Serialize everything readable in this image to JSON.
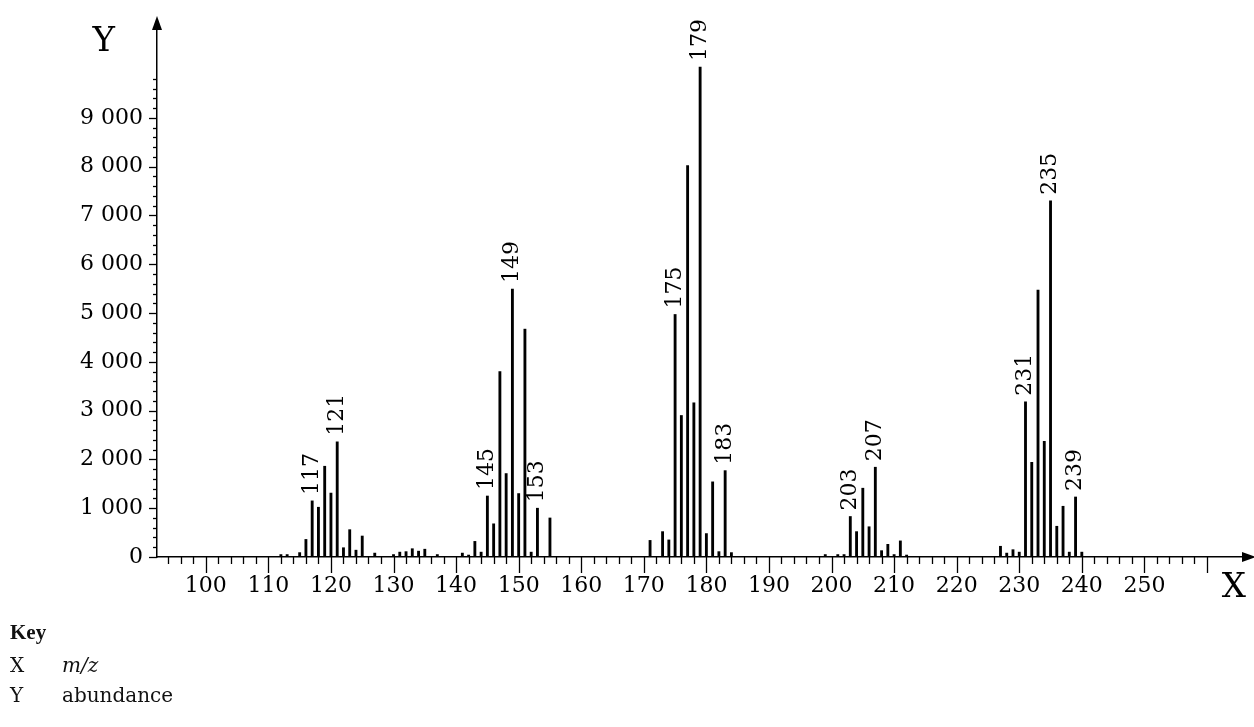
{
  "chart_data": {
    "type": "bar",
    "xlabel": "X",
    "ylabel": "Y",
    "color": "#000000",
    "x": [
      112,
      113,
      115,
      116,
      117,
      118,
      119,
      120,
      121,
      122,
      123,
      124,
      125,
      127,
      130,
      131,
      132,
      133,
      134,
      135,
      137,
      141,
      142,
      143,
      144,
      145,
      146,
      147,
      148,
      149,
      150,
      151,
      152,
      153,
      155,
      171,
      173,
      174,
      175,
      176,
      177,
      178,
      179,
      180,
      181,
      182,
      183,
      184,
      199,
      201,
      202,
      203,
      204,
      205,
      206,
      207,
      208,
      209,
      210,
      211,
      212,
      227,
      228,
      229,
      230,
      231,
      232,
      233,
      234,
      235,
      236,
      237,
      238,
      239,
      240
    ],
    "values": [
      50,
      50,
      90,
      360,
      1150,
      1020,
      1860,
      1310,
      2360,
      190,
      560,
      140,
      430,
      80,
      50,
      100,
      110,
      170,
      120,
      160,
      50,
      80,
      40,
      320,
      100,
      1250,
      680,
      3800,
      1710,
      5490,
      1300,
      4670,
      100,
      1000,
      800,
      340,
      520,
      350,
      4970,
      2900,
      8020,
      3160,
      10040,
      480,
      1540,
      110,
      1770,
      90,
      50,
      50,
      50,
      830,
      520,
      1410,
      620,
      1840,
      130,
      260,
      50,
      330,
      40,
      220,
      80,
      150,
      100,
      3180,
      1940,
      5470,
      2370,
      7300,
      630,
      1040,
      100,
      1230,
      100
    ],
    "xlim": [
      92.2,
      265.6
    ],
    "xticks": [
      {
        "value": 94,
        "label": null
      },
      {
        "value": 96,
        "label": null
      },
      {
        "value": 98,
        "label": null
      },
      100,
      {
        "value": 102,
        "label": null
      },
      {
        "value": 104,
        "label": null
      },
      {
        "value": 106,
        "label": null
      },
      {
        "value": 108,
        "label": null
      },
      110,
      {
        "value": 112,
        "label": null
      },
      {
        "value": 114,
        "label": null
      },
      {
        "value": 116,
        "label": null
      },
      {
        "value": 118,
        "label": null
      },
      120,
      {
        "value": 122,
        "label": null
      },
      {
        "value": 124,
        "label": null
      },
      {
        "value": 126,
        "label": null
      },
      {
        "value": 128,
        "label": null
      },
      130,
      {
        "value": 132,
        "label": null
      },
      {
        "value": 134,
        "label": null
      },
      {
        "value": 136,
        "label": null
      },
      {
        "value": 138,
        "label": null
      },
      140,
      {
        "value": 142,
        "label": null
      },
      {
        "value": 144,
        "label": null
      },
      {
        "value": 146,
        "label": null
      },
      {
        "value": 148,
        "label": null
      },
      150,
      {
        "value": 152,
        "label": null
      },
      {
        "value": 154,
        "label": null
      },
      {
        "value": 156,
        "label": null
      },
      {
        "value": 158,
        "label": null
      },
      160,
      {
        "value": 162,
        "label": null
      },
      {
        "value": 164,
        "label": null
      },
      {
        "value": 166,
        "label": null
      },
      {
        "value": 168,
        "label": null
      },
      170,
      {
        "value": 172,
        "label": null
      },
      {
        "value": 174,
        "label": null
      },
      {
        "value": 176,
        "label": null
      },
      {
        "value": 178,
        "label": null
      },
      180,
      {
        "value": 182,
        "label": null
      },
      {
        "value": 184,
        "label": null
      },
      {
        "value": 186,
        "label": null
      },
      {
        "value": 188,
        "label": null
      },
      190,
      {
        "value": 192,
        "label": null
      },
      {
        "value": 194,
        "label": null
      },
      {
        "value": 196,
        "label": null
      },
      {
        "value": 198,
        "label": null
      },
      200,
      {
        "value": 202,
        "label": null
      },
      {
        "value": 204,
        "label": null
      },
      {
        "value": 206,
        "label": null
      },
      {
        "value": 208,
        "label": null
      },
      210,
      {
        "value": 212,
        "label": null
      },
      {
        "value": 214,
        "label": null
      },
      {
        "value": 216,
        "label": null
      },
      {
        "value": 218,
        "label": null
      },
      220,
      {
        "value": 222,
        "label": null
      },
      {
        "value": 224,
        "label": null
      },
      {
        "value": 226,
        "label": null
      },
      {
        "value": 228,
        "label": null
      },
      230,
      {
        "value": 232,
        "label": null
      },
      {
        "value": 234,
        "label": null
      },
      {
        "value": 236,
        "label": null
      },
      {
        "value": 238,
        "label": null
      },
      240,
      {
        "value": 242,
        "label": null
      },
      {
        "value": 244,
        "label": null
      },
      {
        "value": 246,
        "label": null
      },
      {
        "value": 248,
        "label": null
      },
      250,
      {
        "value": 252,
        "label": null
      },
      {
        "value": 254,
        "label": null
      },
      {
        "value": 256,
        "label": null
      },
      {
        "value": 258,
        "label": null
      },
      {
        "value": 260,
        "label": null
      }
    ],
    "ylim": [
      0,
      10800
    ],
    "yticks": [
      0,
      {
        "value": 200,
        "label": null
      },
      {
        "value": 400,
        "label": null
      },
      {
        "value": 600,
        "label": null
      },
      {
        "value": 800,
        "label": null
      },
      {
        "value": 1000,
        "label": "1 000"
      },
      {
        "value": 1200,
        "label": null
      },
      {
        "value": 1400,
        "label": null
      },
      {
        "value": 1600,
        "label": null
      },
      {
        "value": 1800,
        "label": null
      },
      {
        "value": 2000,
        "label": "2 000"
      },
      {
        "value": 2200,
        "label": null
      },
      {
        "value": 2400,
        "label": null
      },
      {
        "value": 2600,
        "label": null
      },
      {
        "value": 2800,
        "label": null
      },
      {
        "value": 3000,
        "label": "3 000"
      },
      {
        "value": 3200,
        "label": null
      },
      {
        "value": 3400,
        "label": null
      },
      {
        "value": 3600,
        "label": null
      },
      {
        "value": 3800,
        "label": null
      },
      {
        "value": 4000,
        "label": "4 000"
      },
      {
        "value": 4200,
        "label": null
      },
      {
        "value": 4400,
        "label": null
      },
      {
        "value": 4600,
        "label": null
      },
      {
        "value": 4800,
        "label": null
      },
      {
        "value": 5000,
        "label": "5 000"
      },
      {
        "value": 5200,
        "label": null
      },
      {
        "value": 5400,
        "label": null
      },
      {
        "value": 5600,
        "label": null
      },
      {
        "value": 5800,
        "label": null
      },
      {
        "value": 6000,
        "label": "6 000"
      },
      {
        "value": 6200,
        "label": null
      },
      {
        "value": 6400,
        "label": null
      },
      {
        "value": 6600,
        "label": null
      },
      {
        "value": 6800,
        "label": null
      },
      {
        "value": 7000,
        "label": "7 000"
      },
      {
        "value": 7200,
        "label": null
      },
      {
        "value": 7400,
        "label": null
      },
      {
        "value": 7600,
        "label": null
      },
      {
        "value": 7800,
        "label": null
      },
      {
        "value": 8000,
        "label": "8 000"
      },
      {
        "value": 8200,
        "label": null
      },
      {
        "value": 8400,
        "label": null
      },
      {
        "value": 8600,
        "label": null
      },
      {
        "value": 8800,
        "label": null
      },
      {
        "value": 9000,
        "label": "9 000"
      },
      {
        "value": 9200,
        "label": null
      },
      {
        "value": 9400,
        "label": null
      },
      {
        "value": 9600,
        "label": null
      },
      {
        "value": 9800,
        "label": null
      }
    ],
    "grid": false,
    "legend": false,
    "annotations": [
      {
        "text": "117",
        "x": 117,
        "y": 1150
      },
      {
        "text": "121",
        "x": 121,
        "y": 2360
      },
      {
        "text": "145",
        "x": 145,
        "y": 1250
      },
      {
        "text": "149",
        "x": 149,
        "y": 5490
      },
      {
        "text": "153",
        "x": 153,
        "y": 1000
      },
      {
        "text": "175",
        "x": 175,
        "y": 4970
      },
      {
        "text": "179",
        "x": 179,
        "y": 10040
      },
      {
        "text": "183",
        "x": 183,
        "y": 1770
      },
      {
        "text": "203",
        "x": 203,
        "y": 830
      },
      {
        "text": "207",
        "x": 207,
        "y": 1840
      },
      {
        "text": "231",
        "x": 231,
        "y": 3180
      },
      {
        "text": "235",
        "x": 235,
        "y": 7300
      },
      {
        "text": "239",
        "x": 239,
        "y": 1230
      },
      "Key",
      "X",
      "m/z",
      "Y",
      "abundance"
    ]
  }
}
